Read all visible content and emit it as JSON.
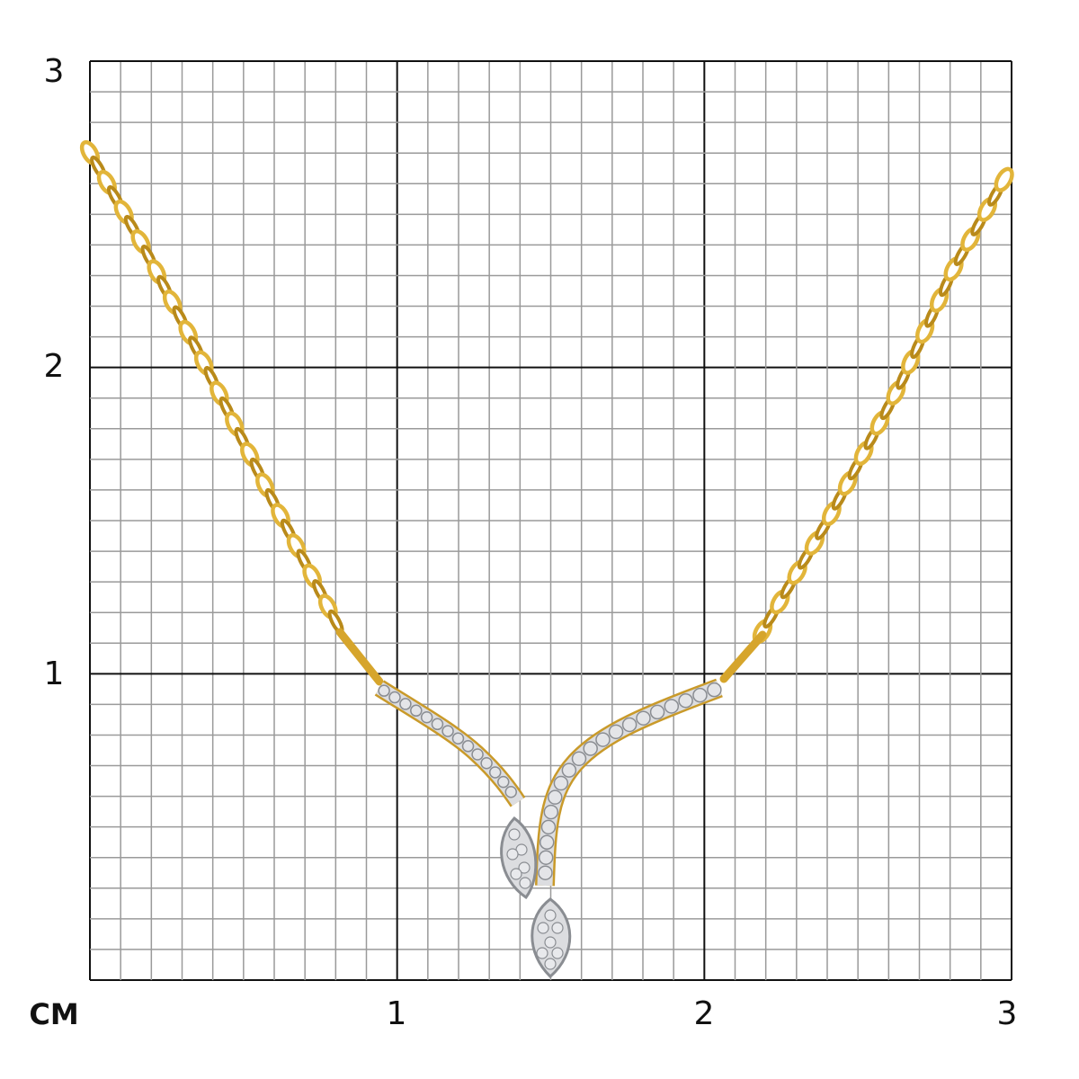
{
  "ruler": {
    "unit": "CM",
    "y_labels": [
      "3",
      "2",
      "1"
    ],
    "x_labels": [
      "1",
      "2",
      "3"
    ],
    "cm_range": [
      0,
      3
    ],
    "minor_divisions_per_cm": 10
  },
  "colors": {
    "gold": "#e2b53a",
    "gold_dark": "#b98a1a",
    "diamond": "#d8dade",
    "diamond_dark": "#8a8d92",
    "grid_minor": "#9a9a9a",
    "grid_major": "#111111"
  }
}
